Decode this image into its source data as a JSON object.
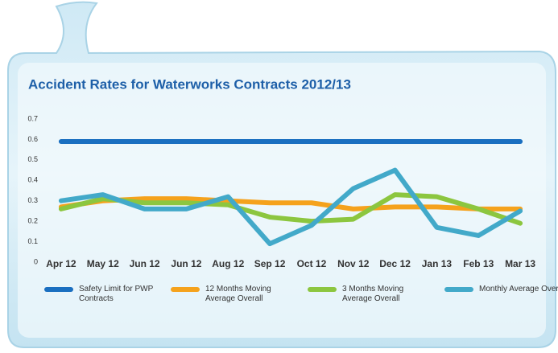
{
  "chart_data": {
    "type": "line",
    "title": "Accident Rates for Waterworks Contracts 2012/13",
    "categories": [
      "Apr 12",
      "May 12",
      "Jun 12",
      "Jun 12",
      "Aug 12",
      "Sep 12",
      "Oct 12",
      "Nov 12",
      "Dec 12",
      "Jan 13",
      "Feb 13",
      "Mar 13"
    ],
    "ylim": [
      0,
      0.7
    ],
    "yticks": [
      0,
      0.1,
      0.2,
      0.3,
      0.4,
      0.5,
      0.6,
      0.7
    ],
    "series": [
      {
        "name": "Safety Limit for PWP Contracts",
        "color": "#1a6fc0",
        "values": [
          0.59,
          0.59,
          0.59,
          0.59,
          0.59,
          0.59,
          0.59,
          0.59,
          0.59,
          0.59,
          0.59,
          0.59
        ]
      },
      {
        "name": "12 Months Moving Average Overall",
        "color": "#f5a21c",
        "values": [
          0.27,
          0.3,
          0.31,
          0.31,
          0.3,
          0.29,
          0.29,
          0.26,
          0.27,
          0.27,
          0.26,
          0.26
        ]
      },
      {
        "name": "3 Months Moving Average Overall",
        "color": "#8cc63f",
        "values": [
          0.26,
          0.31,
          0.29,
          0.29,
          0.28,
          0.22,
          0.2,
          0.21,
          0.33,
          0.32,
          0.26,
          0.19
        ]
      },
      {
        "name": "Monthly Average Overall",
        "color": "#42a9c9",
        "values": [
          0.3,
          0.33,
          0.26,
          0.26,
          0.32,
          0.09,
          0.18,
          0.36,
          0.45,
          0.17,
          0.13,
          0.25
        ]
      }
    ]
  }
}
